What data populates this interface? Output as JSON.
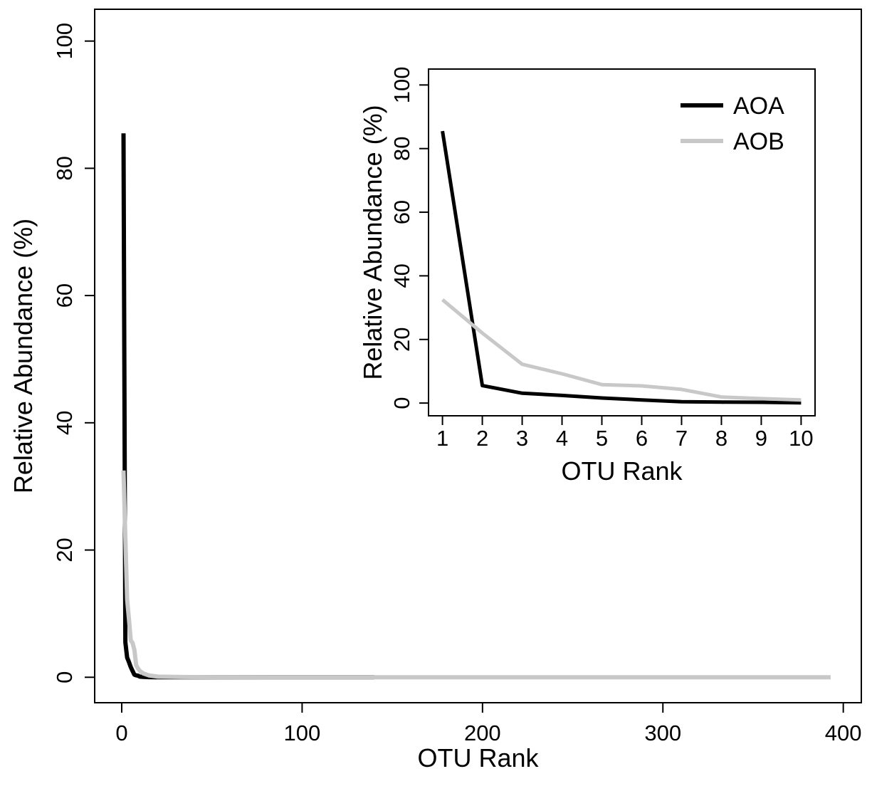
{
  "chart_data": [
    {
      "type": "line",
      "panel": "main",
      "xlabel": "OTU Rank",
      "ylabel": "Relative Abundance (%)",
      "xlim": [
        -15,
        410
      ],
      "ylim": [
        -4,
        105
      ],
      "xticks": [
        0,
        100,
        200,
        300,
        400
      ],
      "yticks": [
        0,
        20,
        40,
        60,
        80,
        100
      ],
      "grid": false,
      "series": [
        {
          "name": "AOA",
          "color": "#000000",
          "x": [
            1,
            2,
            3,
            4,
            5,
            6,
            7,
            8,
            9,
            10,
            12,
            15,
            20,
            30,
            50,
            100,
            140
          ],
          "y": [
            85.5,
            5.5,
            3.1,
            2.4,
            1.6,
            1.0,
            0.4,
            0.3,
            0.25,
            0.1,
            0.05,
            0.02,
            0.01,
            0,
            0,
            0,
            0
          ]
        },
        {
          "name": "AOB",
          "color": "#c8c8c8",
          "x": [
            1,
            2,
            3,
            4,
            5,
            6,
            7,
            8,
            9,
            10,
            12,
            15,
            20,
            30,
            50,
            100,
            200,
            300,
            393
          ],
          "y": [
            32.5,
            22,
            12.2,
            9.2,
            5.8,
            5.4,
            4.3,
            1.9,
            1.4,
            1.0,
            0.6,
            0.3,
            0.1,
            0.05,
            0.02,
            0,
            0,
            0,
            0
          ]
        }
      ]
    },
    {
      "type": "line",
      "panel": "inset",
      "xlabel": "OTU Rank",
      "ylabel": "Relative Abundance (%)",
      "xlim": [
        0.65,
        10.35
      ],
      "ylim": [
        -4,
        105
      ],
      "xticks": [
        1,
        2,
        3,
        4,
        5,
        6,
        7,
        8,
        9,
        10
      ],
      "yticks": [
        0,
        20,
        40,
        60,
        80,
        100
      ],
      "grid": false,
      "legend": {
        "position": "top-right",
        "entries": [
          "AOA",
          "AOB"
        ]
      },
      "series": [
        {
          "name": "AOA",
          "color": "#000000",
          "x": [
            1,
            2,
            3,
            4,
            5,
            6,
            7,
            8,
            9,
            10
          ],
          "y": [
            85.5,
            5.5,
            3.1,
            2.4,
            1.6,
            1.0,
            0.4,
            0.3,
            0.25,
            0.1
          ]
        },
        {
          "name": "AOB",
          "color": "#c8c8c8",
          "x": [
            1,
            2,
            3,
            4,
            5,
            6,
            7,
            8,
            9,
            10
          ],
          "y": [
            32.5,
            22,
            12.2,
            9.2,
            5.8,
            5.4,
            4.3,
            1.9,
            1.4,
            1.0
          ]
        }
      ]
    }
  ]
}
